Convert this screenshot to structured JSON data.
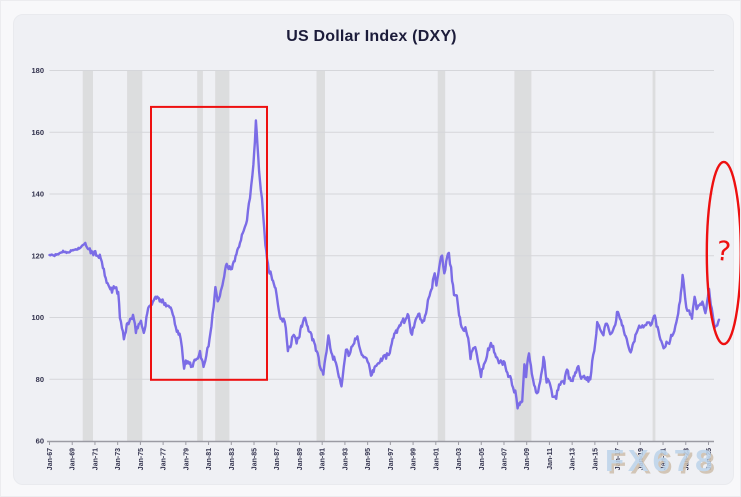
{
  "chart": {
    "title": "US Dollar Index (DXY)"
  },
  "watermark": {
    "text": "FX678",
    "color": "#bed4ea",
    "shadow_color": "#cfc0ae"
  },
  "colors": {
    "page_background": "#f8f8fa",
    "card_background": "#eff0f4",
    "line": "#7b6ce6",
    "grid": "#d5d6da",
    "recession_band": "#dcddde",
    "axis_line": "#9b9ba3",
    "axis_text": "#32324d",
    "title_text": "#1c1c3a",
    "annotation_red": "#ee1010"
  },
  "chart_data": {
    "type": "line",
    "title": "US Dollar Index (DXY)",
    "series_name": "DXY",
    "x_unit": "decimal_year",
    "xlabel": "",
    "ylabel": "",
    "xlim": [
      1967,
      2026.2
    ],
    "ylim": [
      60,
      180
    ],
    "y_ticks": [
      60,
      80,
      100,
      120,
      140,
      160,
      180
    ],
    "x_tick_years": [
      1967,
      1969,
      1971,
      1973,
      1975,
      1977,
      1979,
      1981,
      1983,
      1985,
      1987,
      1989,
      1991,
      1993,
      1995,
      1997,
      1999,
      2001,
      2003,
      2005,
      2007,
      2009,
      2011,
      2013,
      2015,
      2017,
      2019,
      2021,
      2023,
      2025
    ],
    "x_tick_labels": [
      "Jan-67",
      "Jan-69",
      "Jan-71",
      "Jan-73",
      "Jan-75",
      "Jan-77",
      "Jan-79",
      "Jan-81",
      "Jan-83",
      "Jan-85",
      "Jan-87",
      "Jan-89",
      "Jan-91",
      "Jan-93",
      "Jan-95",
      "Jan-97",
      "Jan-99",
      "Jan-01",
      "Jan-03",
      "Jan-05",
      "Jan-07",
      "Jan-09",
      "Jan-11",
      "Jan-13",
      "Jan-15",
      "Jan-17",
      "Jan-19",
      "Jan-21",
      "Jan-23",
      "Jan-25"
    ],
    "grid": "horizontal",
    "legend": "none",
    "recession_bands": [
      [
        1969.92,
        1970.83
      ],
      [
        1973.83,
        1975.17
      ],
      [
        1980.0,
        1980.5
      ],
      [
        1981.58,
        1982.83
      ],
      [
        1990.5,
        1991.25
      ],
      [
        2001.17,
        2001.83
      ],
      [
        2007.92,
        2009.42
      ],
      [
        2020.08,
        2020.33
      ]
    ],
    "annotations": {
      "red_box": {
        "x1": 1975.93,
        "x2": 1986.14,
        "y_bottom": 79.8,
        "y_top": 168.2
      },
      "red_ellipse": {
        "cx": 2026.35,
        "cy": 120.9,
        "rx_years": 1.5,
        "ry_units": 29.5
      },
      "question_mark": {
        "x": 2026.25,
        "y": 118.5,
        "text": "?"
      }
    },
    "points": [
      [
        1967.0,
        120.3
      ],
      [
        1967.3,
        120.1
      ],
      [
        1967.6,
        120.2
      ],
      [
        1967.9,
        120.9
      ],
      [
        1968.2,
        121.4
      ],
      [
        1968.5,
        121.2
      ],
      [
        1968.8,
        121.3
      ],
      [
        1969.1,
        121.9
      ],
      [
        1969.4,
        122.1
      ],
      [
        1969.7,
        122.6
      ],
      [
        1969.95,
        123.3
      ],
      [
        1970.15,
        123.9
      ],
      [
        1970.4,
        122.2
      ],
      [
        1970.7,
        121.1
      ],
      [
        1970.95,
        120.8
      ],
      [
        1971.2,
        120.5
      ],
      [
        1971.5,
        119.2
      ],
      [
        1971.7,
        116.5
      ],
      [
        1971.95,
        112.0
      ],
      [
        1972.2,
        110.0
      ],
      [
        1972.5,
        108.9
      ],
      [
        1972.8,
        110.2
      ],
      [
        1973.05,
        107.5
      ],
      [
        1973.2,
        100.5
      ],
      [
        1973.55,
        92.8
      ],
      [
        1973.8,
        97.5
      ],
      [
        1974.1,
        99.2
      ],
      [
        1974.35,
        100.1
      ],
      [
        1974.6,
        95.7
      ],
      [
        1974.85,
        97.8
      ],
      [
        1975.05,
        98.7
      ],
      [
        1975.3,
        94.8
      ],
      [
        1975.6,
        101.5
      ],
      [
        1975.85,
        104.0
      ],
      [
        1976.1,
        105.3
      ],
      [
        1976.4,
        106.6
      ],
      [
        1976.7,
        105.6
      ],
      [
        1976.95,
        105.0
      ],
      [
        1977.2,
        104.6
      ],
      [
        1977.5,
        103.9
      ],
      [
        1977.75,
        102.4
      ],
      [
        1977.95,
        99.8
      ],
      [
        1978.2,
        96.0
      ],
      [
        1978.45,
        94.9
      ],
      [
        1978.65,
        90.3
      ],
      [
        1978.85,
        83.0
      ],
      [
        1979.0,
        85.9
      ],
      [
        1979.3,
        85.1
      ],
      [
        1979.6,
        84.4
      ],
      [
        1979.85,
        86.3
      ],
      [
        1980.05,
        86.0
      ],
      [
        1980.25,
        88.8
      ],
      [
        1980.55,
        84.3
      ],
      [
        1980.8,
        87.8
      ],
      [
        1981.0,
        90.8
      ],
      [
        1981.25,
        97.5
      ],
      [
        1981.45,
        104.0
      ],
      [
        1981.6,
        109.5
      ],
      [
        1981.8,
        105.5
      ],
      [
        1982.0,
        107.8
      ],
      [
        1982.3,
        112.5
      ],
      [
        1982.6,
        117.5
      ],
      [
        1982.85,
        116.0
      ],
      [
        1983.05,
        115.3
      ],
      [
        1983.3,
        118.8
      ],
      [
        1983.6,
        122.5
      ],
      [
        1983.85,
        125.8
      ],
      [
        1984.1,
        128.8
      ],
      [
        1984.3,
        130.2
      ],
      [
        1984.55,
        136.5
      ],
      [
        1984.75,
        142.0
      ],
      [
        1984.95,
        150.0
      ],
      [
        1985.08,
        157.5
      ],
      [
        1985.17,
        164.7
      ],
      [
        1985.3,
        156.0
      ],
      [
        1985.45,
        148.0
      ],
      [
        1985.6,
        141.5
      ],
      [
        1985.8,
        134.0
      ],
      [
        1986.0,
        123.5
      ],
      [
        1986.3,
        115.8
      ],
      [
        1986.6,
        112.5
      ],
      [
        1986.9,
        109.5
      ],
      [
        1987.1,
        103.5
      ],
      [
        1987.35,
        98.8
      ],
      [
        1987.6,
        99.6
      ],
      [
        1987.8,
        97.0
      ],
      [
        1987.98,
        89.5
      ],
      [
        1988.2,
        90.5
      ],
      [
        1988.5,
        95.2
      ],
      [
        1988.75,
        92.0
      ],
      [
        1989.0,
        94.5
      ],
      [
        1989.3,
        98.8
      ],
      [
        1989.5,
        99.8
      ],
      [
        1989.8,
        96.0
      ],
      [
        1990.05,
        94.0
      ],
      [
        1990.3,
        91.5
      ],
      [
        1990.6,
        88.0
      ],
      [
        1990.85,
        83.5
      ],
      [
        1991.1,
        81.5
      ],
      [
        1991.3,
        87.0
      ],
      [
        1991.55,
        94.0
      ],
      [
        1991.8,
        88.5
      ],
      [
        1992.05,
        86.5
      ],
      [
        1992.3,
        84.0
      ],
      [
        1992.55,
        80.0
      ],
      [
        1992.7,
        78.5
      ],
      [
        1992.9,
        83.5
      ],
      [
        1993.1,
        89.5
      ],
      [
        1993.4,
        87.5
      ],
      [
        1993.65,
        91.0
      ],
      [
        1993.9,
        92.8
      ],
      [
        1994.1,
        93.5
      ],
      [
        1994.4,
        89.5
      ],
      [
        1994.65,
        86.5
      ],
      [
        1994.9,
        86.2
      ],
      [
        1995.1,
        84.5
      ],
      [
        1995.3,
        80.5
      ],
      [
        1995.6,
        83.8
      ],
      [
        1995.85,
        84.6
      ],
      [
        1996.1,
        85.8
      ],
      [
        1996.4,
        87.2
      ],
      [
        1996.7,
        87.6
      ],
      [
        1996.95,
        88.5
      ],
      [
        1997.2,
        93.0
      ],
      [
        1997.5,
        95.5
      ],
      [
        1997.8,
        97.0
      ],
      [
        1998.05,
        99.5
      ],
      [
        1998.3,
        98.8
      ],
      [
        1998.6,
        101.0
      ],
      [
        1998.8,
        94.5
      ],
      [
        1999.0,
        96.0
      ],
      [
        1999.3,
        99.5
      ],
      [
        1999.55,
        101.0
      ],
      [
        1999.8,
        98.0
      ],
      [
        2000.05,
        100.5
      ],
      [
        2000.3,
        104.8
      ],
      [
        2000.6,
        108.5
      ],
      [
        2000.9,
        114.5
      ],
      [
        2001.05,
        110.8
      ],
      [
        2001.3,
        116.8
      ],
      [
        2001.55,
        120.8
      ],
      [
        2001.75,
        113.5
      ],
      [
        2002.0,
        119.8
      ],
      [
        2002.15,
        120.2
      ],
      [
        2002.35,
        115.5
      ],
      [
        2002.6,
        106.8
      ],
      [
        2002.85,
        107.2
      ],
      [
        2003.05,
        100.5
      ],
      [
        2003.35,
        96.0
      ],
      [
        2003.6,
        96.5
      ],
      [
        2003.85,
        92.5
      ],
      [
        2004.05,
        87.2
      ],
      [
        2004.3,
        90.8
      ],
      [
        2004.55,
        89.5
      ],
      [
        2004.8,
        84.8
      ],
      [
        2004.98,
        81.0
      ],
      [
        2005.15,
        83.8
      ],
      [
        2005.4,
        85.5
      ],
      [
        2005.6,
        89.5
      ],
      [
        2005.85,
        91.5
      ],
      [
        2006.05,
        90.5
      ],
      [
        2006.3,
        87.5
      ],
      [
        2006.55,
        85.5
      ],
      [
        2006.8,
        85.8
      ],
      [
        2007.05,
        84.8
      ],
      [
        2007.3,
        82.0
      ],
      [
        2007.55,
        80.5
      ],
      [
        2007.8,
        77.0
      ],
      [
        2008.0,
        75.8
      ],
      [
        2008.2,
        71.3
      ],
      [
        2008.45,
        72.5
      ],
      [
        2008.6,
        73.5
      ],
      [
        2008.8,
        85.5
      ],
      [
        2008.95,
        81.5
      ],
      [
        2009.2,
        88.5
      ],
      [
        2009.45,
        82.5
      ],
      [
        2009.65,
        78.5
      ],
      [
        2009.9,
        75.0
      ],
      [
        2010.1,
        78.0
      ],
      [
        2010.35,
        82.0
      ],
      [
        2010.48,
        87.5
      ],
      [
        2010.75,
        79.5
      ],
      [
        2010.95,
        80.0
      ],
      [
        2011.1,
        77.5
      ],
      [
        2011.35,
        73.5
      ],
      [
        2011.6,
        74.5
      ],
      [
        2011.85,
        78.0
      ],
      [
        2012.05,
        79.5
      ],
      [
        2012.3,
        79.2
      ],
      [
        2012.55,
        83.0
      ],
      [
        2012.8,
        79.8
      ],
      [
        2013.05,
        79.6
      ],
      [
        2013.35,
        82.8
      ],
      [
        2013.55,
        84.5
      ],
      [
        2013.8,
        80.2
      ],
      [
        2014.05,
        80.8
      ],
      [
        2014.35,
        80.0
      ],
      [
        2014.6,
        80.2
      ],
      [
        2014.85,
        87.5
      ],
      [
        2015.05,
        92.5
      ],
      [
        2015.2,
        98.5
      ],
      [
        2015.35,
        97.0
      ],
      [
        2015.55,
        96.0
      ],
      [
        2015.75,
        95.0
      ],
      [
        2015.95,
        98.5
      ],
      [
        2016.15,
        97.0
      ],
      [
        2016.35,
        94.2
      ],
      [
        2016.6,
        96.2
      ],
      [
        2016.8,
        96.8
      ],
      [
        2016.95,
        102.2
      ],
      [
        2017.1,
        101.0
      ],
      [
        2017.3,
        99.5
      ],
      [
        2017.55,
        95.5
      ],
      [
        2017.8,
        93.5
      ],
      [
        2018.0,
        90.5
      ],
      [
        2018.15,
        89.2
      ],
      [
        2018.4,
        92.0
      ],
      [
        2018.65,
        95.0
      ],
      [
        2018.9,
        96.8
      ],
      [
        2019.1,
        96.2
      ],
      [
        2019.35,
        97.5
      ],
      [
        2019.6,
        97.8
      ],
      [
        2019.8,
        98.8
      ],
      [
        2020.0,
        97.5
      ],
      [
        2020.2,
        100.8
      ],
      [
        2020.35,
        99.0
      ],
      [
        2020.6,
        95.5
      ],
      [
        2020.85,
        92.5
      ],
      [
        2021.05,
        89.8
      ],
      [
        2021.3,
        91.5
      ],
      [
        2021.55,
        92.3
      ],
      [
        2021.8,
        94.2
      ],
      [
        2022.0,
        96.0
      ],
      [
        2022.25,
        99.8
      ],
      [
        2022.5,
        105.0
      ],
      [
        2022.72,
        113.8
      ],
      [
        2022.85,
        110.5
      ],
      [
        2023.05,
        102.8
      ],
      [
        2023.3,
        101.5
      ],
      [
        2023.55,
        100.2
      ],
      [
        2023.78,
        106.5
      ],
      [
        2023.95,
        103.5
      ],
      [
        2024.1,
        103.2
      ],
      [
        2024.3,
        105.2
      ],
      [
        2024.55,
        104.5
      ],
      [
        2024.73,
        100.8
      ],
      [
        2024.95,
        107.5
      ],
      [
        2025.04,
        109.5
      ],
      [
        2025.2,
        104.5
      ],
      [
        2025.45,
        99.0
      ],
      [
        2025.55,
        97.0
      ],
      [
        2025.7,
        97.8
      ],
      [
        2025.85,
        98.8
      ],
      [
        2025.92,
        99.3
      ]
    ]
  }
}
